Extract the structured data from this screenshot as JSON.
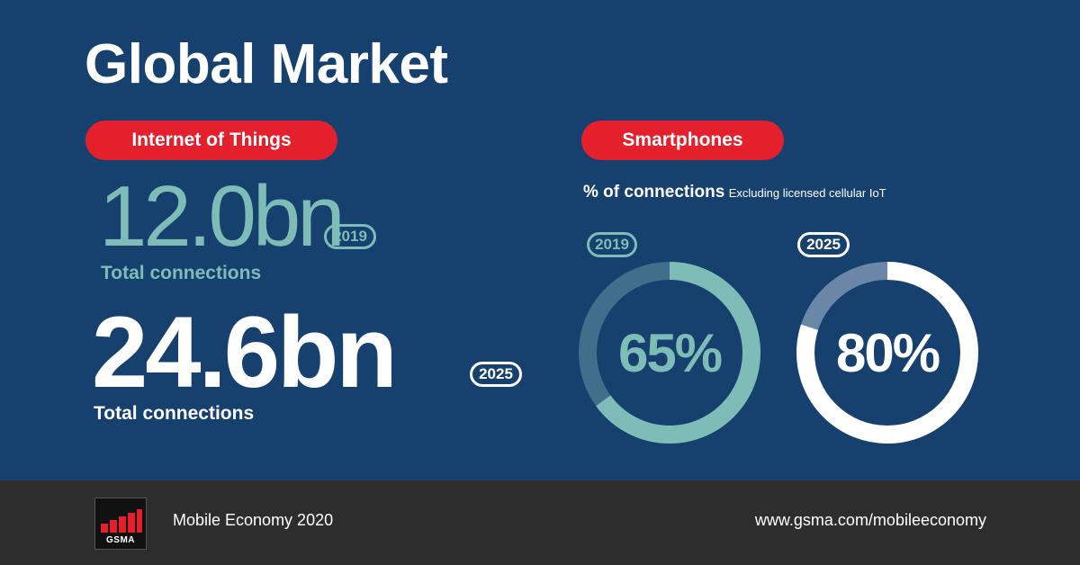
{
  "title": "Global Market",
  "iot": {
    "pill": "Internet of Things",
    "stat_2019": "12.0bn",
    "year_2019": "2019",
    "label_2019": "Total connections",
    "stat_2025": "24.6bn",
    "year_2025": "2025",
    "label_2025": "Total connections"
  },
  "smartphones": {
    "pill": "Smartphones",
    "subtitle": "% of connections",
    "note": "Excluding licensed cellular IoT"
  },
  "colors": {
    "background": "#16406d",
    "accent_red": "#e3202c",
    "teal": "#7ebdb7",
    "teal_track": "#3f6f8a",
    "white_track": "#6a87a8",
    "footer": "#2d2d2d"
  },
  "chart_data": [
    {
      "type": "pie",
      "year": "2019",
      "value": 65,
      "label": "65%"
    },
    {
      "type": "pie",
      "year": "2025",
      "value": 80,
      "label": "80%"
    }
  ],
  "footer": {
    "logo_text": "GSMA",
    "report": "Mobile Economy 2020",
    "url": "www.gsma.com/mobileeconomy"
  }
}
